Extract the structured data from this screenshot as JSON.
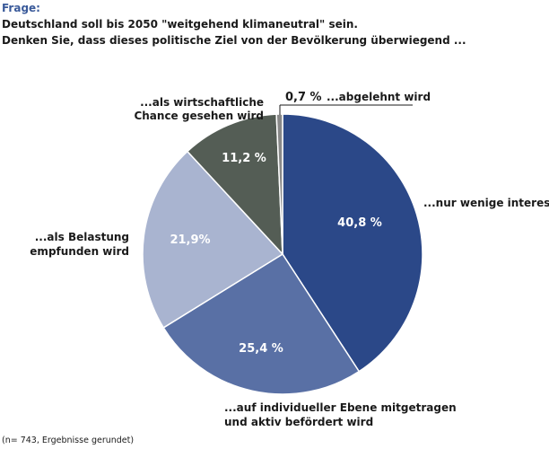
{
  "header": {
    "label": "Frage:",
    "question_line1": "Deutschland soll bis 2050 \"weitgehend klimaneutral\" sein.",
    "question_line2": "Denken Sie, dass dieses politische Ziel von der Bevölkerung überwiegend ..."
  },
  "chart_data": {
    "type": "pie",
    "unit": "%",
    "slices": [
      {
        "label": "...nur wenige interessiert",
        "value": 40.8,
        "value_label": "40,8 %",
        "color": "#2b4888",
        "value_color": "#ffffff"
      },
      {
        "label": "...auf individueller Ebene mitgetragen und aktiv befördert wird",
        "label_lines": [
          "...auf individueller Ebene mitgetragen",
          "und aktiv befördert wird"
        ],
        "value": 25.4,
        "value_label": "25,4 %",
        "color": "#5970a5",
        "value_color": "#ffffff"
      },
      {
        "label": "...als Belastung empfunden wird",
        "label_lines": [
          "...als Belastung",
          "empfunden wird"
        ],
        "value": 21.9,
        "value_label": "21,9%",
        "color": "#a9b4d0",
        "value_color": "#ffffff"
      },
      {
        "label": "...als wirtschaftliche Chance gesehen wird",
        "label_lines": [
          "...als wirtschaftliche",
          "Chance gesehen wird"
        ],
        "value": 11.2,
        "value_label": "11,2 %",
        "color": "#545d55",
        "value_color": "#ffffff"
      },
      {
        "label": "...abgelehnt wird",
        "value": 0.7,
        "value_label": "0,7 %",
        "color": "#888888",
        "value_color": "#1a1a1a"
      }
    ]
  },
  "footnote": "(n= 743, Ergebnisse gerundet)"
}
